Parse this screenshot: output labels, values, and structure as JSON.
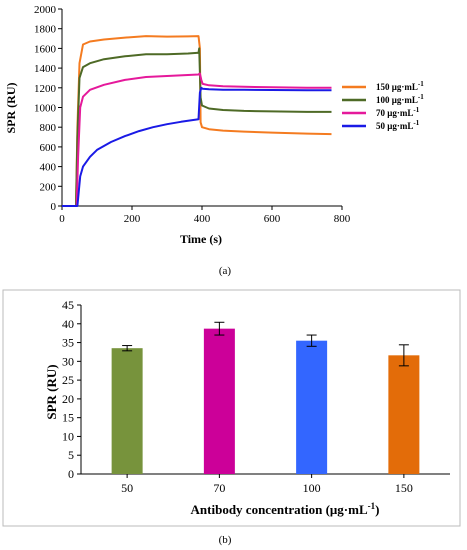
{
  "chart_data": [
    {
      "type": "line",
      "panel_label": "(a)",
      "xlabel": "Time (s)",
      "ylabel": "SPR (RU)",
      "xlim": [
        0,
        800
      ],
      "ylim": [
        0,
        2000
      ],
      "xticks": [
        0,
        200,
        400,
        600,
        800
      ],
      "yticks": [
        0,
        200,
        400,
        600,
        800,
        1000,
        1200,
        1400,
        1600,
        1800,
        2000
      ],
      "grid": false,
      "legend_position": "right",
      "series": [
        {
          "name": "150 μg·mL",
          "superscript": "-1",
          "color": "#f47b20",
          "x": [
            0,
            40,
            44,
            50,
            60,
            80,
            120,
            180,
            240,
            300,
            360,
            390,
            394,
            396,
            400,
            420,
            460,
            520,
            600,
            700,
            770
          ],
          "y": [
            0,
            0,
            800,
            1450,
            1640,
            1670,
            1690,
            1710,
            1725,
            1720,
            1722,
            1725,
            1600,
            850,
            800,
            780,
            765,
            755,
            745,
            735,
            730
          ]
        },
        {
          "name": "100 μg·mL",
          "superscript": "-1",
          "color": "#4e6a26",
          "x": [
            0,
            40,
            44,
            50,
            60,
            80,
            120,
            180,
            240,
            300,
            360,
            390,
            392,
            396,
            400,
            420,
            460,
            520,
            600,
            700,
            770
          ],
          "y": [
            0,
            0,
            700,
            1300,
            1410,
            1450,
            1490,
            1520,
            1540,
            1540,
            1548,
            1555,
            1600,
            1100,
            1020,
            990,
            975,
            965,
            960,
            955,
            955
          ]
        },
        {
          "name": "70 μg·mL",
          "superscript": "-1",
          "color": "#e5199b",
          "x": [
            0,
            42,
            46,
            52,
            60,
            80,
            120,
            180,
            240,
            300,
            360,
            390,
            394,
            398,
            402,
            420,
            460,
            520,
            600,
            700,
            770
          ],
          "y": [
            0,
            0,
            500,
            1000,
            1110,
            1180,
            1230,
            1280,
            1310,
            1320,
            1330,
            1335,
            1345,
            1280,
            1240,
            1225,
            1215,
            1210,
            1205,
            1200,
            1200
          ]
        },
        {
          "name": "50 μg·mL",
          "superscript": "-1",
          "color": "#1a1ae6",
          "x": [
            0,
            44,
            48,
            52,
            60,
            80,
            100,
            140,
            180,
            220,
            260,
            300,
            340,
            380,
            390,
            394,
            398,
            402,
            420,
            460,
            520,
            600,
            700,
            770
          ],
          "y": [
            0,
            0,
            150,
            300,
            400,
            500,
            570,
            650,
            710,
            760,
            800,
            830,
            855,
            875,
            880,
            1150,
            1200,
            1190,
            1185,
            1180,
            1180,
            1178,
            1175,
            1175
          ]
        }
      ]
    },
    {
      "type": "bar",
      "panel_label": "(b)",
      "xlabel": "Antibody concentration (μg·mL",
      "xlabel_superscript": "-1",
      "xlabel_suffix": ")",
      "ylabel": "SPR (RU)",
      "ylim": [
        0,
        45
      ],
      "yticks": [
        0,
        5,
        10,
        15,
        20,
        25,
        30,
        35,
        40,
        45
      ],
      "grid": false,
      "categories": [
        "50",
        "70",
        "100",
        "150"
      ],
      "values": [
        33.5,
        38.7,
        35.5,
        31.6
      ],
      "errors": [
        0.7,
        1.7,
        1.5,
        2.8
      ],
      "colors": [
        "#77933c",
        "#cc0099",
        "#3366ff",
        "#e36c09"
      ]
    }
  ]
}
